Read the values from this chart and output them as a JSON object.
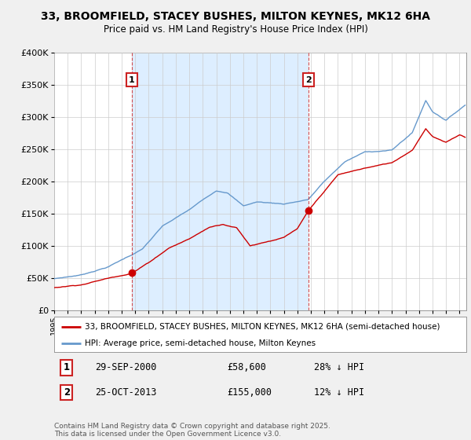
{
  "title": "33, BROOMFIELD, STACEY BUSHES, MILTON KEYNES, MK12 6HA",
  "subtitle": "Price paid vs. HM Land Registry's House Price Index (HPI)",
  "ylim": [
    0,
    400000
  ],
  "xlim_start": 1995.0,
  "xlim_end": 2025.5,
  "ytick_labels": [
    "£0",
    "£50K",
    "£100K",
    "£150K",
    "£200K",
    "£250K",
    "£300K",
    "£350K",
    "£400K"
  ],
  "ytick_values": [
    0,
    50000,
    100000,
    150000,
    200000,
    250000,
    300000,
    350000,
    400000
  ],
  "purchase1_date": 2000.75,
  "purchase1_price": 58600,
  "purchase1_label": "29-SEP-2000",
  "purchase1_price_label": "£58,600",
  "purchase1_hpi_label": "28% ↓ HPI",
  "purchase2_date": 2013.82,
  "purchase2_price": 155000,
  "purchase2_label": "25-OCT-2013",
  "purchase2_price_label": "£155,000",
  "purchase2_hpi_label": "12% ↓ HPI",
  "line_property_color": "#cc0000",
  "line_hpi_color": "#6699cc",
  "shade_color": "#ddeeff",
  "background_color": "#f0f0f0",
  "plot_background": "#ffffff",
  "annotation_box_color": "#cc2222",
  "footer_text": "Contains HM Land Registry data © Crown copyright and database right 2025.\nThis data is licensed under the Open Government Licence v3.0.",
  "legend_label_property": "33, BROOMFIELD, STACEY BUSHES, MILTON KEYNES, MK12 6HA (semi-detached house)",
  "legend_label_hpi": "HPI: Average price, semi-detached house, Milton Keynes"
}
